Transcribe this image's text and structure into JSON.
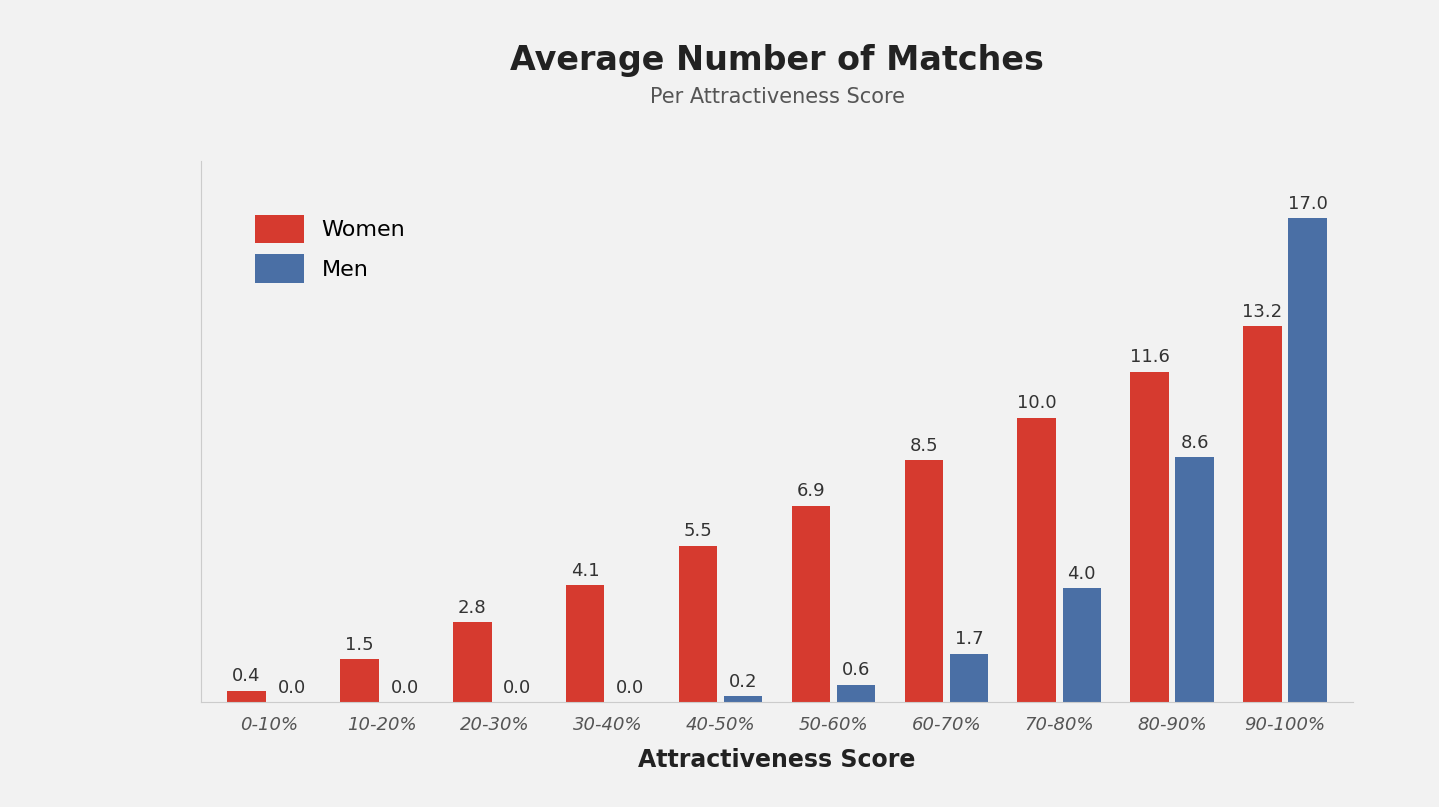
{
  "chart_data": {
    "type": "bar",
    "title": "Average Number of Matches",
    "subtitle": "Per Attractiveness Score",
    "x_label": "Attractiveness Score",
    "categories": [
      "0-10%",
      "10-20%",
      "20-30%",
      "30-40%",
      "40-50%",
      "50-60%",
      "60-70%",
      "70-80%",
      "80-90%",
      "90-100%"
    ],
    "series": [
      {
        "name": "Women",
        "color": "#d63a2f",
        "values": [
          0.4,
          1.5,
          2.8,
          4.1,
          5.5,
          6.9,
          8.5,
          10.0,
          11.6,
          13.2
        ]
      },
      {
        "name": "Men",
        "color": "#4a6fa5",
        "values": [
          0.0,
          0.0,
          0.0,
          0.0,
          0.2,
          0.6,
          1.7,
          4.0,
          8.6,
          17.0
        ]
      }
    ],
    "ylim": [
      0,
      19
    ],
    "yticks": [],
    "tick_labels": "x",
    "data_labels": true,
    "legend": "upper left",
    "grid": false
  }
}
